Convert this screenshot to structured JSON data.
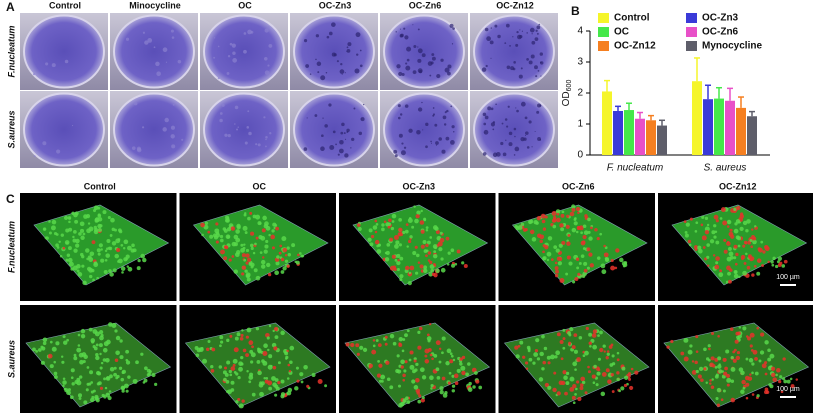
{
  "panel_labels": [
    "A",
    "B",
    "C"
  ],
  "panel_a": {
    "columns": [
      "Control",
      "Minocycline",
      "OC",
      "OC-Zn3",
      "OC-Zn6",
      "OC-Zn12"
    ],
    "rows": [
      "F.nucleatum",
      "S.aureus"
    ]
  },
  "panel_c": {
    "columns": [
      "Control",
      "OC",
      "OC-Zn3",
      "OC-Zn6",
      "OC-Zn12"
    ],
    "rows": [
      "F.nucleatum",
      "S.aureus"
    ],
    "scale_bar": "100 µm"
  },
  "chart_data": {
    "type": "bar",
    "y_label": "OD",
    "y_label_subscript": "600",
    "categories": [
      "F. nucleatum",
      "S. aureus"
    ],
    "series": [
      {
        "name": "Control",
        "color": "#f5f52a",
        "values": [
          2.05,
          2.38
        ],
        "errors": [
          0.35,
          0.75
        ]
      },
      {
        "name": "OC-Zn3",
        "color": "#3a3ad8",
        "values": [
          1.42,
          1.8
        ],
        "errors": [
          0.15,
          0.45
        ]
      },
      {
        "name": "OC",
        "color": "#45e84a",
        "values": [
          1.45,
          1.82
        ],
        "errors": [
          0.22,
          0.35
        ]
      },
      {
        "name": "OC-Zn6",
        "color": "#e850c8",
        "values": [
          1.17,
          1.75
        ],
        "errors": [
          0.2,
          0.4
        ]
      },
      {
        "name": "OC-Zn12",
        "color": "#f57f20",
        "values": [
          1.12,
          1.52
        ],
        "errors": [
          0.15,
          0.35
        ]
      },
      {
        "name": "Mynocycline",
        "color": "#5e5e6a",
        "values": [
          0.95,
          1.25
        ],
        "errors": [
          0.17,
          0.15
        ]
      }
    ],
    "ylim": [
      0,
      4
    ],
    "yticks": [
      0,
      1,
      2,
      3,
      4
    ],
    "legend": "top"
  }
}
